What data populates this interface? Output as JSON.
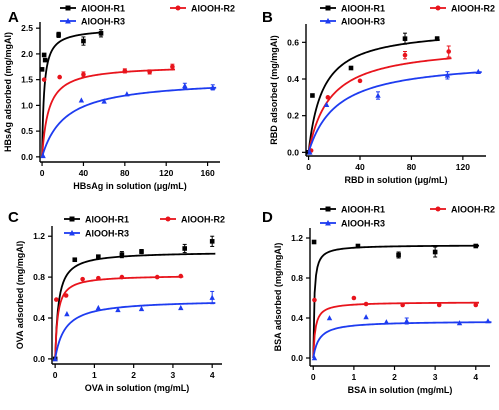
{
  "chart_data": [
    {
      "type": "scatter",
      "panel_label": "A",
      "xlabel": "HBsAg in solution  (μg/mL)",
      "ylabel": "HBsAg adsorbed  (mg/mgAl)",
      "xlim": [
        -2,
        172
      ],
      "ylim": [
        -0.1,
        2.62
      ],
      "xticks": [
        0,
        40,
        80,
        120,
        160
      ],
      "yticks": [
        0.0,
        0.5,
        1.0,
        1.5,
        2.0,
        2.5
      ],
      "ytick_decimals": 1,
      "legend_position": "top-left",
      "series": [
        {
          "name": "AlOOH-R1",
          "color": "#000000",
          "marker": "square",
          "x": [
            0,
            2,
            3,
            16,
            40,
            57
          ],
          "y": [
            1.7,
            1.98,
            1.88,
            2.37,
            2.25,
            2.4
          ],
          "yerr": [
            0,
            0,
            0,
            0.05,
            0.08,
            0.07
          ],
          "fit": {
            "qmax": 2.5,
            "k": 0.5
          }
        },
        {
          "name": "AlOOH-R2",
          "color": "#e8141c",
          "marker": "circle",
          "x": [
            2,
            17,
            40,
            80,
            104,
            126
          ],
          "y": [
            1.5,
            1.55,
            1.6,
            1.67,
            1.65,
            1.75
          ],
          "yerr": [
            0,
            0,
            0.05,
            0.04,
            0.04,
            0.05
          ],
          "fit": {
            "qmax": 1.78,
            "k": 0.16
          }
        },
        {
          "name": "AlOOH-R3",
          "color": "#1e3cf0",
          "marker": "triangle",
          "x": [
            1,
            38,
            60,
            82,
            138,
            165
          ],
          "y": [
            0.02,
            1.1,
            1.08,
            1.22,
            1.38,
            1.35
          ],
          "yerr": [
            0,
            0,
            0,
            0,
            0.05,
            0.05
          ],
          "fit": {
            "qmax": 1.52,
            "k": 0.045
          }
        }
      ]
    },
    {
      "type": "scatter",
      "panel_label": "B",
      "xlabel": "RBD in solution  (μg/mL)",
      "ylabel": "RBD adsorbed  (mg/mgAl)",
      "xlim": [
        -2,
        138
      ],
      "ylim": [
        -0.02,
        0.7
      ],
      "xticks": [
        0,
        40,
        80,
        120
      ],
      "yticks": [
        0.0,
        0.2,
        0.4,
        0.6
      ],
      "ytick_decimals": 1,
      "legend_position": "top",
      "series": [
        {
          "name": "AlOOH-R1",
          "color": "#000000",
          "marker": "square",
          "x": [
            0,
            3,
            33,
            75,
            100
          ],
          "y": [
            0,
            0.31,
            0.46,
            0.62,
            0.62
          ],
          "yerr": [
            0,
            0,
            0,
            0.03,
            0.01
          ],
          "fit": {
            "qmax": 0.68,
            "k": 0.09
          }
        },
        {
          "name": "AlOOH-R2",
          "color": "#e8141c",
          "marker": "circle",
          "x": [
            2,
            15,
            40,
            75,
            109
          ],
          "y": [
            0.01,
            0.3,
            0.39,
            0.53,
            0.55
          ],
          "yerr": [
            0,
            0,
            0,
            0.02,
            0.03
          ],
          "fit": {
            "qmax": 0.59,
            "k": 0.06
          }
        },
        {
          "name": "AlOOH-R3",
          "color": "#1e3cf0",
          "marker": "triangle",
          "x": [
            1,
            14,
            54,
            108,
            132
          ],
          "y": [
            0.0,
            0.26,
            0.31,
            0.42,
            0.44
          ],
          "yerr": [
            0,
            0,
            0.02,
            0.02,
            0
          ],
          "fit": {
            "qmax": 0.51,
            "k": 0.045
          }
        }
      ]
    },
    {
      "type": "scatter",
      "panel_label": "C",
      "xlabel": "OVA in solution  (mg/mL)",
      "ylabel": "OVA adsorbed  (mg/mgAl)",
      "xlim": [
        -0.08,
        4.25
      ],
      "ylim": [
        -0.05,
        1.3
      ],
      "xticks": [
        0,
        1,
        2,
        3,
        4
      ],
      "yticks": [
        0.0,
        0.4,
        0.8,
        1.2
      ],
      "ytick_decimals": 1,
      "legend_position": "top-left",
      "series": [
        {
          "name": "AlOOH-R1",
          "color": "#000000",
          "marker": "square",
          "x": [
            0,
            0.5,
            1.1,
            1.7,
            2.2,
            3.3,
            4.0
          ],
          "y": [
            0,
            0.97,
            1.0,
            1.02,
            1.05,
            1.08,
            1.15
          ],
          "yerr": [
            0,
            0,
            0,
            0.03,
            0.02,
            0.04,
            0.05
          ],
          "fit": {
            "qmax": 1.05,
            "k": 12
          }
        },
        {
          "name": "AlOOH-R2",
          "color": "#e8141c",
          "marker": "circle",
          "x": [
            0.03,
            0.28,
            0.7,
            1.1,
            1.7,
            2.6,
            3.2
          ],
          "y": [
            0.58,
            0.62,
            0.78,
            0.79,
            0.8,
            0.8,
            0.81
          ],
          "yerr": [
            0,
            0,
            0,
            0,
            0,
            0,
            0
          ],
          "fit": {
            "qmax": 0.82,
            "k": 15
          }
        },
        {
          "name": "AlOOH-R3",
          "color": "#1e3cf0",
          "marker": "triangle",
          "x": [
            0,
            0.3,
            1.1,
            1.6,
            2.2,
            3.2,
            4.0
          ],
          "y": [
            0.0,
            0.44,
            0.5,
            0.48,
            0.49,
            0.5,
            0.6
          ],
          "yerr": [
            0,
            0,
            0,
            0,
            0,
            0,
            0.06
          ],
          "fit": {
            "qmax": 0.58,
            "k": 4
          }
        }
      ]
    },
    {
      "type": "scatter",
      "panel_label": "D",
      "xlabel": "BSA in solution  (mg/mL)",
      "ylabel": "BSA adsorbed  (mg/mgAl)",
      "xlim": [
        -0.08,
        4.35
      ],
      "ylim": [
        -0.08,
        1.3
      ],
      "xticks": [
        0,
        1,
        2,
        3,
        4
      ],
      "yticks": [
        0.0,
        0.4,
        0.8,
        1.2
      ],
      "ytick_decimals": 1,
      "legend_position": "top",
      "series": [
        {
          "name": "AlOOH-R1",
          "color": "#000000",
          "marker": "square",
          "x": [
            0.02,
            1.1,
            2.1,
            3.0,
            4.0
          ],
          "y": [
            1.16,
            1.12,
            1.03,
            1.06,
            1.12
          ],
          "yerr": [
            0,
            0,
            0.03,
            0.05,
            0
          ],
          "fit": {
            "qmax": 1.13,
            "k": 40
          }
        },
        {
          "name": "AlOOH-R2",
          "color": "#e8141c",
          "marker": "circle",
          "x": [
            0.03,
            1.0,
            1.3,
            2.2,
            3.1,
            4.0
          ],
          "y": [
            0.58,
            0.6,
            0.54,
            0.53,
            0.53,
            0.53
          ],
          "yerr": [
            0,
            0,
            0,
            0,
            0,
            0
          ],
          "fit": {
            "qmax": 0.56,
            "k": 20
          }
        },
        {
          "name": "AlOOH-R3",
          "color": "#1e3cf0",
          "marker": "triangle",
          "x": [
            0.03,
            0.4,
            1.3,
            1.8,
            2.3,
            3.6,
            4.3
          ],
          "y": [
            0.0,
            0.4,
            0.41,
            0.36,
            0.37,
            0.35,
            0.37
          ],
          "yerr": [
            0,
            0,
            0,
            0,
            0.03,
            0,
            0
          ],
          "fit": {
            "qmax": 0.37,
            "k": 7
          }
        }
      ]
    }
  ]
}
